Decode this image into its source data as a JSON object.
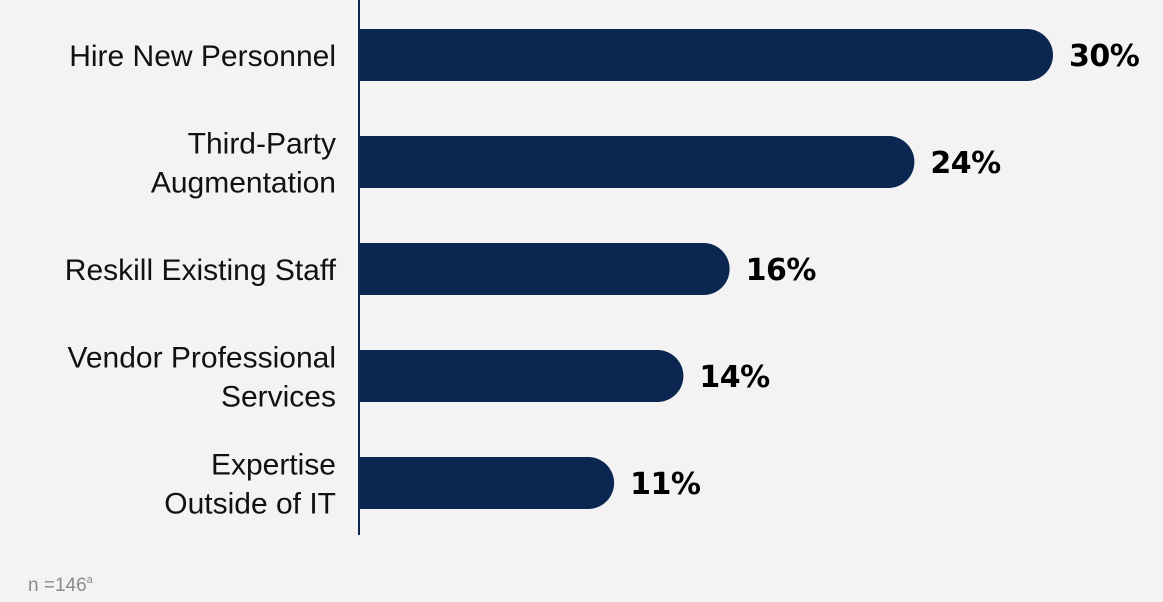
{
  "chart_data": {
    "type": "bar",
    "orientation": "horizontal",
    "categories": [
      [
        "Hire New Personnel"
      ],
      [
        "Third-Party",
        "Augmentation"
      ],
      [
        "Reskill Existing Staff"
      ],
      [
        "Vendor Professional",
        "Services"
      ],
      [
        "Expertise",
        "Outside of IT"
      ]
    ],
    "values": [
      30,
      24,
      16,
      14,
      11
    ],
    "value_labels": [
      "30%",
      "24%",
      "16%",
      "14%",
      "11%"
    ],
    "title": "",
    "xlabel": "",
    "ylabel": "",
    "xlim": [
      0,
      30
    ],
    "grid": false,
    "legend": "none",
    "colors": {
      "bar": "#0b2651",
      "axis": "#0b2651",
      "label": "#111111",
      "value_label": "#000000",
      "background": "#f3f3f3"
    }
  },
  "footnote": {
    "text": "n =146",
    "superscript": "a"
  }
}
